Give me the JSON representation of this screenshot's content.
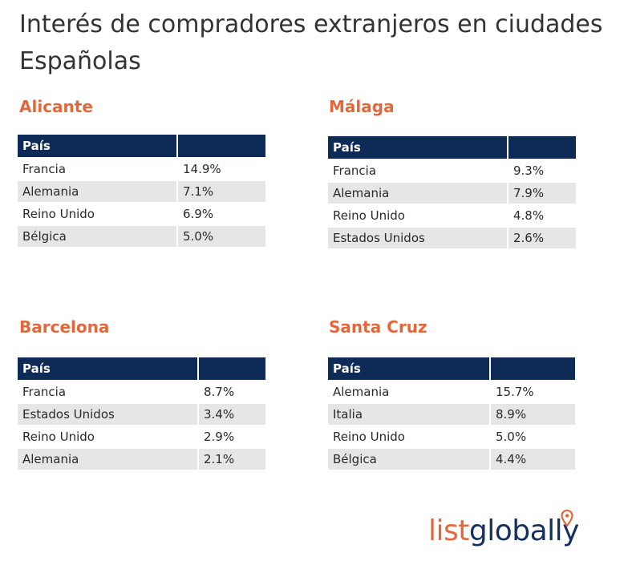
{
  "page": {
    "title": "Interés de compradores extranjeros en ciudades Españolas"
  },
  "colors": {
    "header_bg": "#0e2a57",
    "accent_orange": "#e2683c",
    "row_alt": "#e6e6e6"
  },
  "logo": {
    "part1": "list",
    "part2": "globally",
    "icon": "location-pin-icon"
  },
  "cities": [
    {
      "name": "Alicante",
      "header": "País",
      "rows": [
        {
          "country": "Francia",
          "value": "14.9%"
        },
        {
          "country": "Alemania",
          "value": "7.1%"
        },
        {
          "country": "Reino Unido",
          "value": "6.9%"
        },
        {
          "country": "Bélgica",
          "value": "5.0%"
        }
      ]
    },
    {
      "name": "Málaga",
      "header": "País",
      "rows": [
        {
          "country": "Francia",
          "value": "9.3%"
        },
        {
          "country": "Alemania",
          "value": "7.9%"
        },
        {
          "country": "Reino Unido",
          "value": "4.8%"
        },
        {
          "country": "Estados Unidos",
          "value": "2.6%"
        }
      ]
    },
    {
      "name": "Barcelona",
      "header": "País",
      "rows": [
        {
          "country": "Francia",
          "value": "8.7%"
        },
        {
          "country": "Estados Unidos",
          "value": "3.4%"
        },
        {
          "country": "Reino Unido",
          "value": "2.9%"
        },
        {
          "country": "Alemania",
          "value": "2.1%"
        }
      ]
    },
    {
      "name": "Santa Cruz",
      "header": "País",
      "rows": [
        {
          "country": "Alemania",
          "value": "15.7%"
        },
        {
          "country": "Italia",
          "value": "8.9%"
        },
        {
          "country": "Reino Unido",
          "value": "5.0%"
        },
        {
          "country": "Bélgica",
          "value": "4.4%"
        }
      ]
    }
  ]
}
